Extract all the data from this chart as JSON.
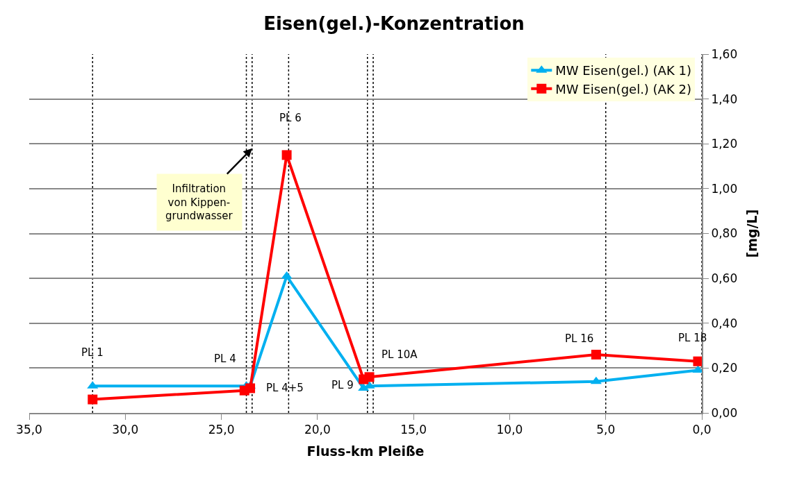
{
  "chart_data": {
    "type": "line",
    "title": "Eisen(gel.)-Konzentration",
    "xlabel": "Fluss-km Pleiße",
    "ylabel": "[mg/L]",
    "xlim": [
      35,
      0
    ],
    "xticks": [
      {
        "value": 35,
        "label": "35,0"
      },
      {
        "value": 30,
        "label": "30,0"
      },
      {
        "value": 25,
        "label": "25,0"
      },
      {
        "value": 20,
        "label": "20,0"
      },
      {
        "value": 15,
        "label": "15,0"
      },
      {
        "value": 10,
        "label": "10,0"
      },
      {
        "value": 5,
        "label": "5,0"
      },
      {
        "value": 0,
        "label": "0,0"
      }
    ],
    "ylim": [
      0,
      1.6
    ],
    "yticks": [
      {
        "value": 0,
        "label": "0,00"
      },
      {
        "value": 0.2,
        "label": "0,20"
      },
      {
        "value": 0.4,
        "label": "0,40"
      },
      {
        "value": 0.6,
        "label": "0,60"
      },
      {
        "value": 0.8,
        "label": "0,80"
      },
      {
        "value": 1.0,
        "label": "1,00"
      },
      {
        "value": 1.2,
        "label": "1,20"
      },
      {
        "value": 1.4,
        "label": "1,40"
      },
      {
        "value": 1.6,
        "label": "1,60"
      }
    ],
    "series": [
      {
        "name": "MW Eisen(gel.) (AK 1)",
        "color": "#00b0f0",
        "marker": "triangle",
        "x": [
          31.7,
          23.7,
          23.5,
          21.6,
          17.6,
          17.3,
          5.5,
          0.2
        ],
        "values": [
          0.12,
          0.12,
          0.12,
          0.61,
          0.11,
          0.12,
          0.14,
          0.19
        ]
      },
      {
        "name": "MW Eisen(gel.) (AK 2)",
        "color": "#ff0000",
        "marker": "square",
        "x": [
          31.7,
          23.8,
          23.5,
          21.6,
          17.6,
          17.3,
          5.5,
          0.2
        ],
        "values": [
          0.06,
          0.1,
          0.11,
          1.15,
          0.15,
          0.16,
          0.26,
          0.23
        ]
      }
    ],
    "ref_lines": [
      {
        "axis": "x",
        "value": 31.7,
        "line_style": "dotted",
        "color": "#000000"
      },
      {
        "axis": "x",
        "value": 23.7,
        "line_style": "dotted",
        "color": "#000000"
      },
      {
        "axis": "x",
        "value": 23.4,
        "line_style": "dotted",
        "color": "#000000"
      },
      {
        "axis": "x",
        "value": 21.5,
        "line_style": "dotted",
        "color": "#000000"
      },
      {
        "axis": "x",
        "value": 17.4,
        "line_style": "dotted",
        "color": "#000000"
      },
      {
        "axis": "x",
        "value": 17.1,
        "line_style": "dotted",
        "color": "#000000"
      },
      {
        "axis": "x",
        "value": 5.0,
        "line_style": "dotted",
        "color": "#000000"
      },
      {
        "axis": "x",
        "value": 0.0,
        "line_style": "dotted",
        "color": "#000000"
      }
    ],
    "annotations": [
      {
        "text": "PL 1",
        "x": 31.7,
        "y": 0.12
      },
      {
        "text": "PL 4",
        "x": 23.8,
        "y": 0.1
      },
      {
        "text": "PL 4+5",
        "x": 23.5,
        "y": 0.11
      },
      {
        "text": "PL 6",
        "x": 21.6,
        "y": 1.15
      },
      {
        "text": "PL 9",
        "x": 17.6,
        "y": 0.15
      },
      {
        "text": "PL 10A",
        "x": 17.3,
        "y": 0.16
      },
      {
        "text": "PL 16",
        "x": 5.5,
        "y": 0.26
      },
      {
        "text": "PL 18",
        "x": 0.2,
        "y": 0.23
      },
      {
        "text": "Infiltration\nvon Kippen-\ngrundwasser",
        "x": 23.4,
        "y": 1.18
      }
    ],
    "grid": "y",
    "legend": "top right",
    "line_style": "solid"
  }
}
